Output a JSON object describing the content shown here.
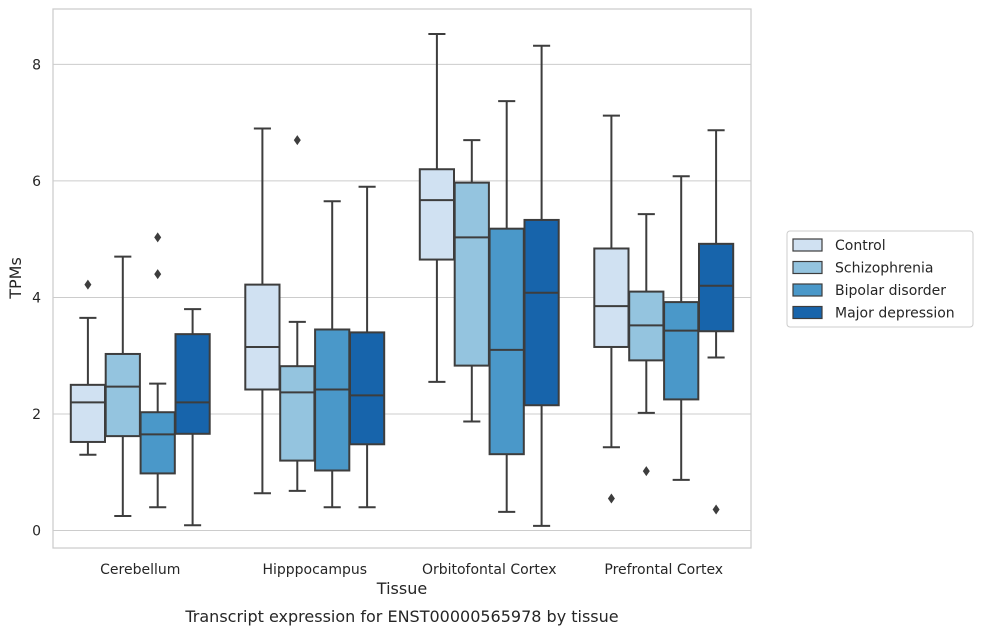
{
  "colors": {
    "Control": "#d0e1f2",
    "Schizophrenia": "#94c4df",
    "Bipolar disorder": "#4a98c9",
    "Major depression": "#1764ab",
    "edge": "#3d3d3d",
    "grid": "#cccccc",
    "spine": "#cccccc"
  },
  "chart_data": {
    "type": "box",
    "title": "",
    "caption": "Transcript expression for ENST00000565978 by tissue",
    "xlabel": "Tissue",
    "ylabel": "TPMs",
    "ylim": [
      -0.3,
      8.95
    ],
    "yticks": [
      0,
      2,
      4,
      6,
      8
    ],
    "grid": true,
    "legend_position": "right",
    "categories": [
      "Cerebellum",
      "Hipppocampus",
      "Orbitofontal Cortex",
      "Prefrontal Cortex"
    ],
    "series": [
      {
        "name": "Control",
        "boxes": [
          {
            "whislo": 1.3,
            "q1": 1.52,
            "med": 2.2,
            "q3": 2.5,
            "whishi": 3.65,
            "fliers": [
              4.22
            ]
          },
          {
            "whislo": 0.64,
            "q1": 2.42,
            "med": 3.15,
            "q3": 4.22,
            "whishi": 6.9,
            "fliers": []
          },
          {
            "whislo": 2.55,
            "q1": 4.65,
            "med": 5.67,
            "q3": 6.2,
            "whishi": 8.52,
            "fliers": []
          },
          {
            "whislo": 1.43,
            "q1": 3.15,
            "med": 3.85,
            "q3": 4.84,
            "whishi": 7.12,
            "fliers": [
              0.55
            ]
          }
        ]
      },
      {
        "name": "Schizophrenia",
        "boxes": [
          {
            "whislo": 0.25,
            "q1": 1.62,
            "med": 2.47,
            "q3": 3.03,
            "whishi": 4.7,
            "fliers": []
          },
          {
            "whislo": 0.68,
            "q1": 1.2,
            "med": 2.37,
            "q3": 2.82,
            "whishi": 3.58,
            "fliers": [
              6.7
            ]
          },
          {
            "whislo": 1.87,
            "q1": 2.83,
            "med": 5.03,
            "q3": 5.97,
            "whishi": 6.7,
            "fliers": []
          },
          {
            "whislo": 2.02,
            "q1": 2.92,
            "med": 3.52,
            "q3": 4.1,
            "whishi": 5.43,
            "fliers": [
              1.02
            ]
          }
        ]
      },
      {
        "name": "Bipolar disorder",
        "boxes": [
          {
            "whislo": 0.4,
            "q1": 0.98,
            "med": 1.65,
            "q3": 2.03,
            "whishi": 2.52,
            "fliers": [
              4.4,
              5.03
            ]
          },
          {
            "whislo": 0.4,
            "q1": 1.03,
            "med": 2.42,
            "q3": 3.45,
            "whishi": 5.65,
            "fliers": []
          },
          {
            "whislo": 0.32,
            "q1": 1.31,
            "med": 3.1,
            "q3": 5.18,
            "whishi": 7.37,
            "fliers": []
          },
          {
            "whislo": 0.87,
            "q1": 2.25,
            "med": 3.43,
            "q3": 3.92,
            "whishi": 6.08,
            "fliers": []
          }
        ]
      },
      {
        "name": "Major depression",
        "boxes": [
          {
            "whislo": 0.09,
            "q1": 1.66,
            "med": 2.2,
            "q3": 3.37,
            "whishi": 3.8,
            "fliers": []
          },
          {
            "whislo": 0.4,
            "q1": 1.48,
            "med": 2.32,
            "q3": 3.4,
            "whishi": 5.9,
            "fliers": []
          },
          {
            "whislo": 0.08,
            "q1": 2.15,
            "med": 4.08,
            "q3": 5.33,
            "whishi": 8.32,
            "fliers": []
          },
          {
            "whislo": 2.97,
            "q1": 3.42,
            "med": 4.2,
            "q3": 4.92,
            "whishi": 6.87,
            "fliers": [
              0.36
            ]
          }
        ]
      }
    ]
  }
}
